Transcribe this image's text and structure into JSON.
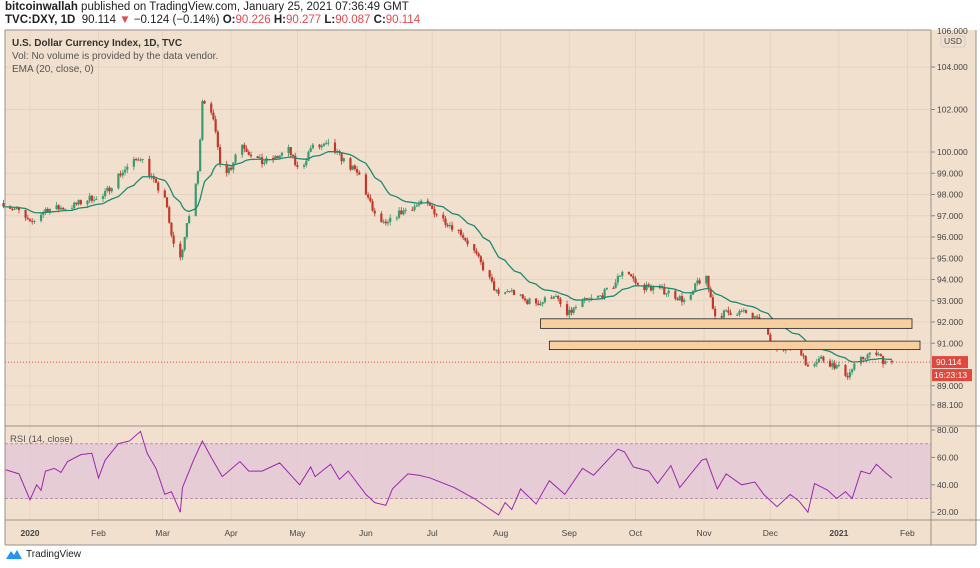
{
  "header": {
    "author": "bitcoinwallah",
    "published_text": "published on TradingView.com, January 25, 2021 07:36:49 GMT",
    "symbol": "TVC:DXY, 1D",
    "last": "90.114",
    "change": "−0.124 (−0.14%)",
    "o_label": "O:",
    "o": "90.226",
    "h_label": "H:",
    "h": "90.277",
    "l_label": "L:",
    "l": "90.087",
    "c_label": "C:",
    "c": "90.114"
  },
  "legend": {
    "title": "U.S. Dollar Currency Index, 1D, TVC",
    "vol": "Vol: No volume is provided by the data vendor.",
    "ema": "EMA (20, close, 0)"
  },
  "rsi_label": "RSI (14, close)",
  "currency": "USD",
  "price_label": "90.114",
  "countdown": "16:23:13",
  "brand": "TradingView",
  "colors": {
    "background": "#f2e0cf",
    "up": "#3d9970",
    "down": "#c0392b",
    "ema": "#1f8a70",
    "rsi": "#9c27b0",
    "rsi_band": "#e2c6d6",
    "zone_fill": "#f7cfa0",
    "price_tag": "#e0483e"
  },
  "chart_data": [
    {
      "type": "candlestick",
      "title": "U.S. Dollar Currency Index, 1D, TVC",
      "y_ticks": [
        "106.000",
        "104.000",
        "102.000",
        "100.000",
        "99.000",
        "98.000",
        "97.000",
        "96.000",
        "95.000",
        "94.000",
        "93.000",
        "92.000",
        "91.000",
        "89.000",
        "88.100"
      ],
      "x_ticks": [
        "2020",
        "Feb",
        "Mar",
        "Apr",
        "May",
        "Jun",
        "Jul",
        "Aug",
        "Sep",
        "Oct",
        "Nov",
        "Dec",
        "2021",
        "Feb"
      ],
      "grid": true,
      "approx_closes": [
        [
          "2019-12-20",
          97.6
        ],
        [
          "2019-12-27",
          97.2
        ],
        [
          "2020-01-01",
          96.6
        ],
        [
          "2020-01-08",
          97.3
        ],
        [
          "2020-01-19",
          97.4
        ],
        [
          "2020-01-30",
          97.9
        ],
        [
          "2020-02-01",
          97.6
        ],
        [
          "2020-02-10",
          98.9
        ],
        [
          "2020-02-20",
          99.8
        ],
        [
          "2020-02-27",
          98.4
        ],
        [
          "2020-03-02",
          97.9
        ],
        [
          "2020-03-05",
          96.0
        ],
        [
          "2020-03-09",
          95.0
        ],
        [
          "2020-03-13",
          97.0
        ],
        [
          "2020-03-17",
          99.0
        ],
        [
          "2020-03-19",
          102.5
        ],
        [
          "2020-03-23",
          102.0
        ],
        [
          "2020-03-28",
          99.0
        ],
        [
          "2020-04-01",
          99.3
        ],
        [
          "2020-04-05",
          100.5
        ],
        [
          "2020-04-09",
          100.0
        ],
        [
          "2020-04-15",
          99.5
        ],
        [
          "2020-04-21",
          99.7
        ],
        [
          "2020-04-27",
          100.1
        ],
        [
          "2020-05-02",
          99.0
        ],
        [
          "2020-05-07",
          100.2
        ],
        [
          "2020-05-15",
          100.3
        ],
        [
          "2020-05-22",
          99.6
        ],
        [
          "2020-05-29",
          98.9
        ],
        [
          "2020-06-05",
          97.0
        ],
        [
          "2020-06-10",
          96.5
        ],
        [
          "2020-06-14",
          97.0
        ],
        [
          "2020-06-21",
          97.4
        ],
        [
          "2020-06-28",
          97.6
        ],
        [
          "2020-07-05",
          96.9
        ],
        [
          "2020-07-14",
          96.2
        ],
        [
          "2020-07-20",
          95.3
        ],
        [
          "2020-07-27",
          94.0
        ],
        [
          "2020-07-31",
          93.2
        ],
        [
          "2020-08-05",
          93.5
        ],
        [
          "2020-08-12",
          93.0
        ],
        [
          "2020-08-19",
          92.9
        ],
        [
          "2020-08-25",
          93.3
        ],
        [
          "2020-08-31",
          92.3
        ],
        [
          "2020-09-06",
          92.9
        ],
        [
          "2020-09-15",
          93.2
        ],
        [
          "2020-09-21",
          93.7
        ],
        [
          "2020-09-26",
          94.6
        ],
        [
          "2020-10-02",
          93.7
        ],
        [
          "2020-10-09",
          93.6
        ],
        [
          "2020-10-16",
          93.4
        ],
        [
          "2020-10-25",
          92.9
        ],
        [
          "2020-10-29",
          93.9
        ],
        [
          "2020-11-02",
          94.0
        ],
        [
          "2020-11-06",
          92.3
        ],
        [
          "2020-11-14",
          92.5
        ],
        [
          "2020-11-21",
          92.4
        ],
        [
          "2020-11-28",
          91.8
        ],
        [
          "2020-12-01",
          91.0
        ],
        [
          "2020-12-08",
          90.8
        ],
        [
          "2020-12-14",
          90.9
        ],
        [
          "2020-12-17",
          90.0
        ],
        [
          "2020-12-24",
          90.3
        ],
        [
          "2020-12-31",
          89.9
        ],
        [
          "2021-01-05",
          89.5
        ],
        [
          "2021-01-08",
          89.9
        ],
        [
          "2021-01-13",
          90.4
        ],
        [
          "2021-01-18",
          90.5
        ],
        [
          "2021-01-21",
          90.2
        ],
        [
          "2021-01-25",
          90.114
        ]
      ],
      "ema_period": 20,
      "zones": [
        {
          "from": "2020-08-19",
          "top": 92.15,
          "bottom": 91.7
        },
        {
          "from": "2020-08-23",
          "top": 91.1,
          "bottom": 90.7
        }
      ],
      "last_price": 90.114
    },
    {
      "type": "line",
      "title": "RSI (14, close)",
      "y_ticks": [
        "80.00",
        "60.00",
        "40.00",
        "20.00"
      ],
      "band": [
        30,
        70
      ],
      "points": [
        [
          "2019-12-21",
          51
        ],
        [
          "2019-12-27",
          48
        ],
        [
          "2020-01-01",
          29
        ],
        [
          "2020-01-04",
          40
        ],
        [
          "2020-01-06",
          36
        ],
        [
          "2020-01-08",
          50
        ],
        [
          "2020-01-12",
          52
        ],
        [
          "2020-01-15",
          49
        ],
        [
          "2020-01-18",
          57
        ],
        [
          "2020-01-24",
          62
        ],
        [
          "2020-01-29",
          63
        ],
        [
          "2020-02-01",
          45
        ],
        [
          "2020-02-04",
          58
        ],
        [
          "2020-02-10",
          70
        ],
        [
          "2020-02-15",
          72
        ],
        [
          "2020-02-20",
          79
        ],
        [
          "2020-02-23",
          63
        ],
        [
          "2020-02-27",
          52
        ],
        [
          "2020-03-02",
          33
        ],
        [
          "2020-03-05",
          35
        ],
        [
          "2020-03-09",
          20
        ],
        [
          "2020-03-10",
          38
        ],
        [
          "2020-03-15",
          58
        ],
        [
          "2020-03-19",
          72
        ],
        [
          "2020-03-23",
          60
        ],
        [
          "2020-03-28",
          46
        ],
        [
          "2020-04-05",
          57
        ],
        [
          "2020-04-09",
          50
        ],
        [
          "2020-04-15",
          50
        ],
        [
          "2020-04-23",
          56
        ],
        [
          "2020-05-02",
          40
        ],
        [
          "2020-05-07",
          53
        ],
        [
          "2020-05-09",
          46
        ],
        [
          "2020-05-16",
          55
        ],
        [
          "2020-05-20",
          44
        ],
        [
          "2020-05-24",
          50
        ],
        [
          "2020-06-01",
          33
        ],
        [
          "2020-06-05",
          27
        ],
        [
          "2020-06-10",
          25
        ],
        [
          "2020-06-13",
          37
        ],
        [
          "2020-06-20",
          48
        ],
        [
          "2020-06-25",
          47
        ],
        [
          "2020-06-30",
          45
        ],
        [
          "2020-07-11",
          38
        ],
        [
          "2020-07-20",
          30
        ],
        [
          "2020-07-31",
          18
        ],
        [
          "2020-08-03",
          27
        ],
        [
          "2020-08-06",
          22
        ],
        [
          "2020-08-10",
          37
        ],
        [
          "2020-08-17",
          26
        ],
        [
          "2020-08-23",
          43
        ],
        [
          "2020-08-30",
          33
        ],
        [
          "2020-09-07",
          52
        ],
        [
          "2020-09-12",
          47
        ],
        [
          "2020-09-23",
          66
        ],
        [
          "2020-09-26",
          64
        ],
        [
          "2020-09-30",
          53
        ],
        [
          "2020-10-07",
          50
        ],
        [
          "2020-10-11",
          41
        ],
        [
          "2020-10-17",
          54
        ],
        [
          "2020-10-21",
          38
        ],
        [
          "2020-10-24",
          44
        ],
        [
          "2020-10-31",
          58
        ],
        [
          "2020-11-02",
          59
        ],
        [
          "2020-11-07",
          37
        ],
        [
          "2020-11-11",
          48
        ],
        [
          "2020-11-18",
          40
        ],
        [
          "2020-11-24",
          42
        ],
        [
          "2020-11-28",
          33
        ],
        [
          "2020-12-04",
          24
        ],
        [
          "2020-12-10",
          33
        ],
        [
          "2020-12-14",
          28
        ],
        [
          "2020-12-18",
          20
        ],
        [
          "2020-12-21",
          41
        ],
        [
          "2020-12-27",
          36
        ],
        [
          "2020-12-31",
          30
        ],
        [
          "2021-01-04",
          35
        ],
        [
          "2021-01-07",
          30
        ],
        [
          "2021-01-11",
          50
        ],
        [
          "2021-01-15",
          48
        ],
        [
          "2021-01-18",
          55
        ],
        [
          "2021-01-22",
          49
        ],
        [
          "2021-01-25",
          45
        ]
      ]
    }
  ]
}
